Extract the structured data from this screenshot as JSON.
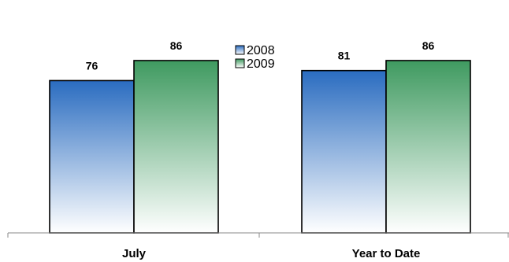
{
  "chart_data": {
    "type": "bar",
    "title": "",
    "xlabel": "",
    "ylabel": "",
    "ylim": [
      0,
      100
    ],
    "grid": false,
    "legend_position": "center-top",
    "categories": [
      "July",
      "Year to Date"
    ],
    "series": [
      {
        "name": "2008",
        "values": [
          76,
          81
        ],
        "color_top": "#2a6cc0",
        "color_bottom": "#ffffff"
      },
      {
        "name": "2009",
        "values": [
          86,
          86
        ],
        "color_top": "#3f9a60",
        "color_bottom": "#ffffff"
      }
    ]
  }
}
